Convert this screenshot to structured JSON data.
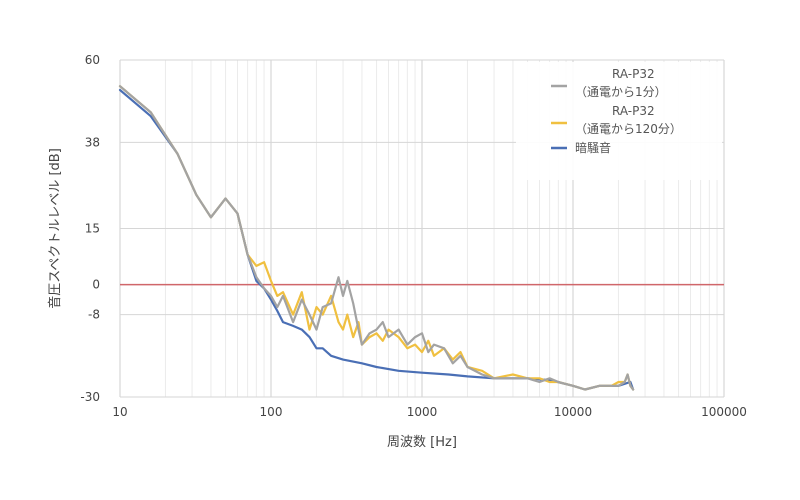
{
  "chart_data": {
    "type": "line",
    "title": "",
    "xlabel": "周波数 [Hz]",
    "ylabel": "音圧スペクトルレベル [dB]",
    "x_scale": "log",
    "xlim": [
      10,
      100000
    ],
    "ylim": [
      -30,
      60
    ],
    "x_ticks": [
      "10",
      "100",
      "1000",
      "10000",
      "100000"
    ],
    "y_ticks": [
      {
        "value": 60,
        "label": "60"
      },
      {
        "value": 38,
        "label": "38"
      },
      {
        "value": 15,
        "label": "15"
      },
      {
        "value": 0,
        "label": "0"
      },
      {
        "value": -8,
        "label": "-8"
      },
      {
        "value": -30,
        "label": "-30"
      }
    ],
    "grid": true,
    "reference_line": {
      "y": 0,
      "color": "#d0666a"
    },
    "legend_position": "top-right",
    "series": [
      {
        "name": "RA-P32\n（通電から1分）",
        "color": "#a3a3a3",
        "x": [
          10,
          16,
          24,
          32,
          40,
          50,
          60,
          70,
          80,
          90,
          100,
          110,
          120,
          140,
          160,
          180,
          200,
          220,
          250,
          280,
          300,
          320,
          350,
          380,
          400,
          450,
          500,
          550,
          600,
          700,
          800,
          900,
          1000,
          1100,
          1200,
          1400,
          1600,
          1800,
          2000,
          2500,
          3000,
          4000,
          5000,
          6000,
          7000,
          8000,
          10000,
          12000,
          15000,
          18000,
          20000,
          22000,
          23000,
          24000,
          25000
        ],
        "y": [
          53,
          46,
          35,
          24,
          18,
          23,
          19,
          8,
          2,
          -1,
          -3,
          -6,
          -3,
          -10,
          -4,
          -8,
          -12,
          -6,
          -5,
          2,
          -3,
          1,
          -5,
          -12,
          -16,
          -13,
          -12,
          -10,
          -14,
          -12,
          -16,
          -14,
          -13,
          -18,
          -16,
          -17,
          -21,
          -19,
          -22,
          -24,
          -25,
          -25,
          -25,
          -26,
          -25,
          -26,
          -27,
          -28,
          -27,
          -27,
          -27,
          -26,
          -24,
          -27,
          -28
        ]
      },
      {
        "name": "RA-P32\n（通電から120分）",
        "color": "#f0c040",
        "x": [
          10,
          16,
          24,
          32,
          40,
          50,
          60,
          70,
          80,
          90,
          100,
          110,
          120,
          140,
          160,
          180,
          200,
          220,
          250,
          280,
          300,
          320,
          350,
          380,
          400,
          450,
          500,
          550,
          600,
          700,
          800,
          900,
          1000,
          1100,
          1200,
          1400,
          1600,
          1800,
          2000,
          2500,
          3000,
          4000,
          5000,
          6000,
          7000,
          8000,
          10000,
          12000,
          15000,
          18000,
          20000,
          22000,
          23000,
          24000,
          25000
        ],
        "y": [
          53,
          46,
          35,
          24,
          18,
          23,
          19,
          8,
          5,
          6,
          1,
          -3,
          -2,
          -8,
          -2,
          -12,
          -6,
          -8,
          -3,
          -10,
          -12,
          -8,
          -14,
          -10,
          -16,
          -14,
          -13,
          -15,
          -12,
          -14,
          -17,
          -16,
          -18,
          -15,
          -19,
          -17,
          -20,
          -18,
          -22,
          -23,
          -25,
          -24,
          -25,
          -25,
          -26,
          -26,
          -27,
          -28,
          -27,
          -27,
          -26,
          -26,
          -24,
          -27,
          -28
        ]
      },
      {
        "name": "暗騒音",
        "color": "#4a6fb5",
        "x": [
          10,
          16,
          24,
          32,
          40,
          50,
          60,
          70,
          80,
          90,
          100,
          110,
          120,
          140,
          160,
          180,
          200,
          220,
          250,
          300,
          400,
          500,
          700,
          1000,
          1500,
          2000,
          3000,
          5000,
          7000,
          10000,
          12000,
          15000,
          20000,
          24000,
          25000
        ],
        "y": [
          52,
          45,
          35,
          24,
          18,
          23,
          19,
          8,
          1,
          -1,
          -4,
          -7,
          -10,
          -11,
          -12,
          -14,
          -17,
          -17,
          -19,
          -20,
          -21,
          -22,
          -23,
          -23.5,
          -24,
          -24.5,
          -25,
          -25,
          -25.5,
          -27,
          -28,
          -27,
          -27,
          -26,
          -28
        ]
      }
    ]
  }
}
